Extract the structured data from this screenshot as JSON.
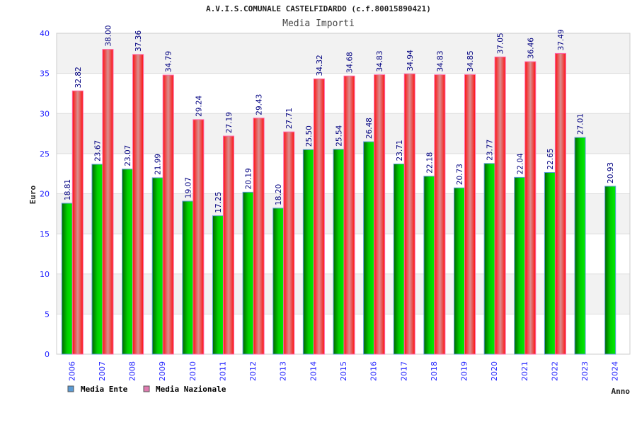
{
  "chart_data": {
    "type": "bar",
    "title": "A.V.I.S.COMUNALE CASTELFIDARDO (c.f.80015890421)",
    "subtitle": "Media Importi",
    "xlabel": "Anno",
    "ylabel": "Euro",
    "ylim": [
      0,
      40
    ],
    "yticks": [
      "0",
      "5",
      "10",
      "15",
      "20",
      "25",
      "30",
      "35",
      "40"
    ],
    "categories": [
      "2006",
      "2007",
      "2008",
      "2009",
      "2010",
      "2011",
      "2012",
      "2013",
      "2014",
      "2015",
      "2016",
      "2017",
      "2018",
      "2019",
      "2020",
      "2021",
      "2022",
      "2023",
      "2024"
    ],
    "series": [
      {
        "name": "Media Ente",
        "color": "#00bb00",
        "legend_color": "#5b9bd5",
        "values": [
          18.81,
          23.67,
          23.07,
          21.99,
          19.07,
          17.25,
          20.19,
          18.2,
          25.5,
          25.54,
          26.48,
          23.71,
          22.18,
          20.73,
          23.77,
          22.04,
          22.65,
          27.01,
          20.93
        ],
        "labels": [
          "18.81",
          "23.67",
          "23.07",
          "21.99",
          "19.07",
          "17.25",
          "20.19",
          "18.20",
          "25.50",
          "25.54",
          "26.48",
          "23.71",
          "22.18",
          "20.73",
          "23.77",
          "22.04",
          "22.65",
          "27.01",
          "20.93"
        ]
      },
      {
        "name": "Media Nazionale",
        "color": "#ff1a1a",
        "legend_color": "#e07bb0",
        "values": [
          32.82,
          38.0,
          37.36,
          34.79,
          29.24,
          27.19,
          29.43,
          27.71,
          34.32,
          34.68,
          34.83,
          34.94,
          34.83,
          34.85,
          37.05,
          36.46,
          37.49,
          null,
          null
        ],
        "labels": [
          "32.82",
          "38.00",
          "37.36",
          "34.79",
          "29.24",
          "27.19",
          "29.43",
          "27.71",
          "34.32",
          "34.68",
          "34.83",
          "34.94",
          "34.83",
          "34.85",
          "37.05",
          "36.46",
          "37.49",
          null,
          null
        ]
      }
    ],
    "grid": true,
    "legend": "bottom-left"
  }
}
